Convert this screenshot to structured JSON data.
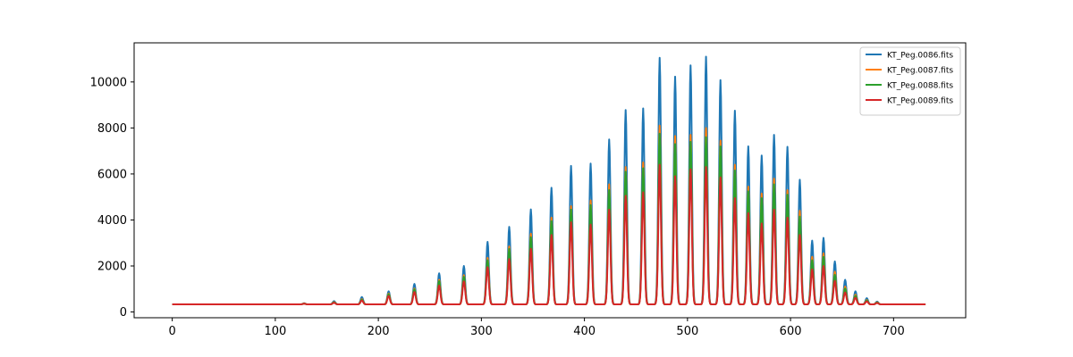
{
  "chart_data": {
    "type": "line",
    "title": "",
    "xlabel": "",
    "ylabel": "",
    "xlim": [
      -37,
      770
    ],
    "ylim": [
      -250,
      11700
    ],
    "x_ticks": [
      0,
      100,
      200,
      300,
      400,
      500,
      600,
      700
    ],
    "y_ticks": [
      0,
      2000,
      4000,
      6000,
      8000,
      10000
    ],
    "x_tick_labels": [
      "0",
      "100",
      "200",
      "300",
      "400",
      "500",
      "600",
      "700"
    ],
    "y_tick_labels": [
      "0",
      "2000",
      "4000",
      "6000",
      "8000",
      "10000"
    ],
    "grid": false,
    "legend_position": "top-right",
    "x_range": [
      0,
      731
    ],
    "baseline": 330,
    "peaks_x": [
      128,
      157,
      184,
      210,
      235,
      259,
      283,
      306,
      327,
      348,
      368,
      387,
      406,
      424,
      440,
      457,
      473,
      488,
      503,
      518,
      532,
      546,
      559,
      572,
      584,
      597,
      609,
      621,
      632,
      643,
      653,
      663,
      674,
      684
    ],
    "series": [
      {
        "name": "KT_Peg.0086.fits",
        "color": "#1f77b4",
        "peaks_y": [
          380,
          470,
          650,
          900,
          1220,
          1680,
          2000,
          3050,
          3700,
          4460,
          5400,
          6350,
          6450,
          7500,
          8780,
          8850,
          11050,
          10230,
          10720,
          11100,
          10080,
          8750,
          7200,
          6800,
          7700,
          7180,
          5750,
          3100,
          3220,
          2200,
          1400,
          900,
          600,
          450
        ]
      },
      {
        "name": "KT_Peg.0087.fits",
        "color": "#ff7f0e",
        "peaks_y": [
          370,
          430,
          560,
          800,
          1020,
          1400,
          1600,
          2350,
          2850,
          3400,
          4100,
          4600,
          4850,
          5550,
          6300,
          6500,
          8100,
          7650,
          7700,
          8000,
          7450,
          6400,
          5450,
          5150,
          5800,
          5300,
          4400,
          2400,
          2550,
          1750,
          1100,
          750,
          520,
          420
        ]
      },
      {
        "name": "KT_Peg.0088.fits",
        "color": "#2ca02c",
        "peaks_y": [
          365,
          420,
          540,
          770,
          980,
          1340,
          1530,
          2250,
          2740,
          3250,
          3950,
          4450,
          4650,
          5300,
          6100,
          6250,
          7750,
          7300,
          7400,
          7600,
          7200,
          6150,
          5250,
          4950,
          5550,
          5100,
          4150,
          2250,
          2400,
          1620,
          1020,
          700,
          500,
          410
        ]
      },
      {
        "name": "KT_Peg.0089.fits",
        "color": "#d62728",
        "peaks_y": [
          360,
          400,
          500,
          700,
          870,
          1150,
          1330,
          1950,
          2300,
          2750,
          3350,
          3900,
          3800,
          4450,
          5050,
          5200,
          6400,
          5900,
          6200,
          6300,
          5850,
          4950,
          4300,
          3850,
          4450,
          4100,
          3350,
          1850,
          2000,
          1350,
          850,
          620,
          460,
          390
        ]
      }
    ]
  }
}
